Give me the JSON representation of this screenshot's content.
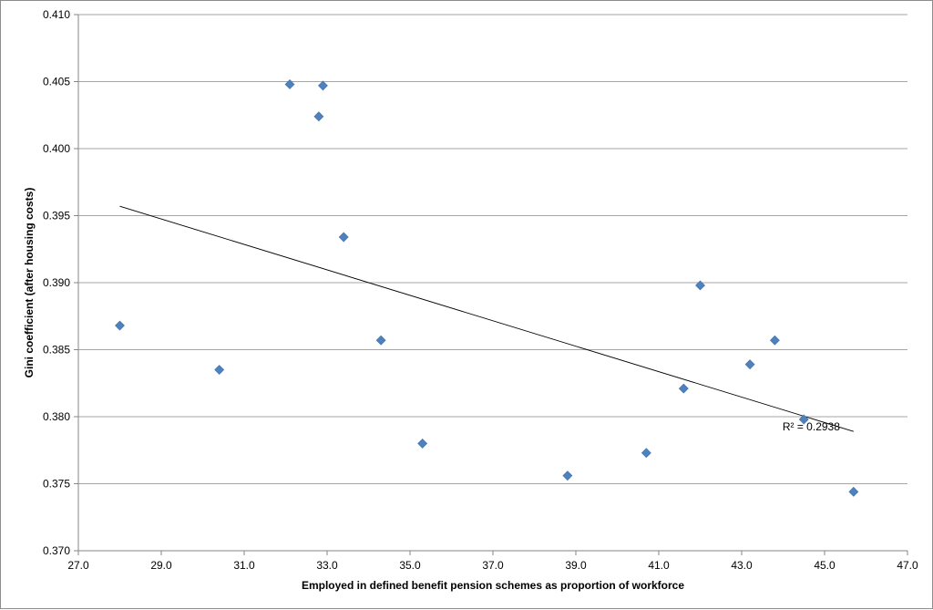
{
  "chart_data": {
    "type": "scatter",
    "title": "",
    "xlabel": "Employed in defined benefit pension schemes as proportion  of workforce",
    "ylabel": "Gini coefficient (after housing costs)",
    "xlim": [
      27.0,
      47.0
    ],
    "ylim": [
      0.37,
      0.41
    ],
    "x_ticks": [
      "27.0",
      "29.0",
      "31.0",
      "33.0",
      "35.0",
      "37.0",
      "39.0",
      "41.0",
      "43.0",
      "45.0",
      "47.0"
    ],
    "y_ticks": [
      "0.370",
      "0.375",
      "0.380",
      "0.385",
      "0.390",
      "0.395",
      "0.400",
      "0.405",
      "0.410"
    ],
    "grid": "horizontal",
    "marker_color": "#4f81bd",
    "trendline_color": "#000000",
    "points": [
      {
        "x": 28.0,
        "y": 0.3868
      },
      {
        "x": 30.4,
        "y": 0.3835
      },
      {
        "x": 32.1,
        "y": 0.4048
      },
      {
        "x": 32.9,
        "y": 0.4047
      },
      {
        "x": 32.8,
        "y": 0.4024
      },
      {
        "x": 33.4,
        "y": 0.3934
      },
      {
        "x": 34.3,
        "y": 0.3857
      },
      {
        "x": 35.3,
        "y": 0.378
      },
      {
        "x": 38.8,
        "y": 0.3756
      },
      {
        "x": 40.7,
        "y": 0.3773
      },
      {
        "x": 41.6,
        "y": 0.3821
      },
      {
        "x": 42.0,
        "y": 0.3898
      },
      {
        "x": 43.2,
        "y": 0.3839
      },
      {
        "x": 43.8,
        "y": 0.3857
      },
      {
        "x": 44.5,
        "y": 0.3798
      },
      {
        "x": 45.7,
        "y": 0.3744
      }
    ],
    "trendline": {
      "x": [
        28.0,
        45.7
      ],
      "y": [
        0.3957,
        0.3789
      ]
    },
    "annotation": "R² = 0.2938"
  }
}
